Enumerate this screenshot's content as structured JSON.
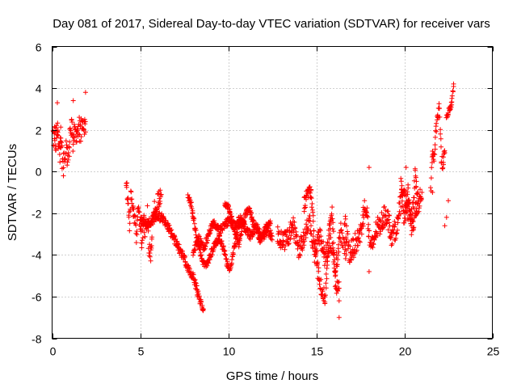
{
  "chart_data": {
    "type": "scatter",
    "title": "Day 081 of 2017, Sidereal Day-to-day VTEC variation (SDTVAR) for receiver vars",
    "xlabel": "GPS time / hours",
    "ylabel": "SDTVAR / TECUs",
    "xlim": [
      0,
      25
    ],
    "ylim": [
      -8,
      6
    ],
    "xticks": [
      0,
      5,
      10,
      15,
      20,
      25
    ],
    "yticks": [
      -8,
      -6,
      -4,
      -2,
      0,
      2,
      4,
      6
    ],
    "grid": true,
    "marker": "plus",
    "series": [
      {
        "name": "SDTVAR",
        "color": "#ff0000",
        "segments": [
          {
            "x": [
              0.05,
              0.15,
              0.2,
              0.3,
              0.35,
              0.45,
              0.5,
              0.6,
              0.7,
              0.8,
              0.9,
              1.0,
              1.1,
              1.2,
              1.3,
              1.4,
              1.5,
              1.6,
              1.7,
              1.8,
              1.9
            ],
            "y": [
              1.6,
              1.9,
              1.3,
              2.2,
              1.4,
              1.0,
              1.6,
              0.2,
              0.5,
              1.1,
              0.6,
              1.5,
              2.2,
              1.2,
              2.6,
              1.8,
              2.3,
              1.7,
              2.4,
              2.1,
              1.9
            ],
            "scatter": 1.1
          },
          {
            "x": [
              4.2,
              4.3,
              4.4,
              4.5,
              4.6,
              4.7,
              4.8,
              4.9,
              5.0,
              5.1,
              5.2,
              5.3,
              5.4,
              5.5,
              5.6,
              5.7,
              5.8,
              5.9,
              6.0,
              6.1,
              6.2
            ],
            "y": [
              -0.3,
              -1.5,
              -2.5,
              -1.0,
              -1.8,
              -2.3,
              -3.2,
              -1.5,
              -2.6,
              -3.4,
              -2.2,
              -3.0,
              -2.0,
              -3.6,
              -4.0,
              -2.8,
              -1.6,
              -2.2,
              -1.4,
              -1.2,
              -1.1
            ],
            "scatter": 0.8
          },
          {
            "x": [
              5.0,
              5.3,
              5.6,
              5.9,
              6.2,
              6.5,
              6.8,
              7.1,
              7.4,
              7.7,
              8.0,
              8.2,
              8.4,
              8.6
            ],
            "y": [
              -2.2,
              -2.6,
              -2.4,
              -2.1,
              -2.2,
              -2.5,
              -3.0,
              -3.5,
              -4.0,
              -4.6,
              -5.0,
              -5.6,
              -6.2,
              -6.6
            ],
            "scatter": 0.4
          },
          {
            "x": [
              7.7,
              7.9,
              8.1,
              8.3,
              8.5,
              8.7,
              8.9,
              9.1,
              9.3,
              9.5,
              9.7,
              9.9,
              10.1,
              10.3,
              10.5,
              10.7,
              10.9
            ],
            "y": [
              -1.1,
              -1.6,
              -2.6,
              -3.5,
              -4.2,
              -4.5,
              -4.2,
              -3.8,
              -3.4,
              -3.2,
              -3.6,
              -4.3,
              -4.7,
              -3.8,
              -2.9,
              -2.4,
              -2.5
            ],
            "scatter": 0.35
          },
          {
            "x": [
              8.0,
              8.3,
              8.6,
              8.9,
              9.2,
              9.5,
              9.8,
              10.1,
              10.4,
              10.7,
              11.0,
              11.3,
              11.6,
              11.9,
              12.2,
              12.5
            ],
            "y": [
              -3.9,
              -3.2,
              -3.7,
              -3.0,
              -2.4,
              -2.9,
              -2.6,
              -2.3,
              -2.7,
              -2.2,
              -2.8,
              -3.1,
              -2.6,
              -3.2,
              -2.8,
              -3.1
            ],
            "scatter": 0.4
          },
          {
            "x": [
              9.8,
              10.0,
              10.2,
              10.4,
              10.6,
              10.8,
              11.0,
              11.2,
              11.4,
              11.6,
              11.8,
              12.0,
              12.2,
              12.4
            ],
            "y": [
              -1.6,
              -1.7,
              -2.2,
              -3.0,
              -3.5,
              -2.6,
              -2.0,
              -1.8,
              -2.4,
              -2.7,
              -3.3,
              -2.9,
              -2.6,
              -2.5
            ],
            "scatter": 0.3
          },
          {
            "x": [
              12.8,
              13.1,
              13.4,
              13.7,
              14.0,
              14.3,
              14.6,
              14.9,
              15.2,
              15.5,
              15.8,
              16.1,
              16.4,
              16.7
            ],
            "y": [
              -3.0,
              -3.4,
              -3.1,
              -2.6,
              -3.7,
              -3.3,
              -2.2,
              -3.9,
              -3.0,
              -4.2,
              -3.3,
              -4.6,
              -2.9,
              -4.0
            ],
            "scatter": 0.9
          },
          {
            "x": [
              14.3,
              14.5,
              14.7,
              14.9,
              15.1,
              15.3,
              15.5,
              15.7,
              15.9,
              16.1,
              16.3
            ],
            "y": [
              -1.6,
              -1.1,
              -1.0,
              -3.3,
              -4.8,
              -5.7,
              -6.0,
              -3.1,
              -2.0,
              -5.6,
              -5.6
            ],
            "scatter": 0.7
          },
          {
            "x": [
              16.6,
              16.9,
              17.2,
              17.5,
              17.8,
              18.1,
              18.4,
              18.7,
              19.0,
              19.3,
              19.6,
              19.9,
              20.2,
              20.5,
              20.8
            ],
            "y": [
              -2.3,
              -4.0,
              -3.5,
              -3.0,
              -1.5,
              -3.8,
              -2.8,
              -2.4,
              -2.0,
              -3.1,
              -2.6,
              -1.0,
              -1.8,
              -2.5,
              -1.4
            ],
            "scatter": 1.0
          },
          {
            "x": [
              19.8,
              20.0,
              20.2,
              20.4,
              20.6,
              20.8,
              21.0
            ],
            "y": [
              -0.5,
              -2.4,
              -0.8,
              -2.8,
              -0.2,
              -1.6,
              -1.0
            ],
            "scatter": 0.9
          },
          {
            "x": [
              21.5,
              21.6,
              21.7,
              21.8,
              21.9,
              22.0,
              22.1,
              22.2,
              22.3
            ],
            "y": [
              -1.0,
              1.0,
              0.6,
              1.9,
              2.7,
              3.1,
              0.5,
              0.3,
              0.9
            ],
            "scatter": 0.6
          },
          {
            "x": [
              22.4,
              22.5,
              22.6,
              22.7,
              22.8
            ],
            "y": [
              2.6,
              2.9,
              3.0,
              3.4,
              4.2
            ],
            "scatter": 0.3
          }
        ],
        "outliers": {
          "x": [
            0.3,
            1.2,
            1.9,
            16.3,
            16.3,
            21.6,
            22.3,
            22.4,
            22.5,
            18.0,
            18.0,
            20.1
          ],
          "y": [
            3.3,
            3.4,
            3.8,
            -7.0,
            -6.2,
            -1.0,
            -2.6,
            -2.2,
            -1.4,
            0.2,
            -4.8,
            0.2
          ]
        }
      }
    ]
  }
}
